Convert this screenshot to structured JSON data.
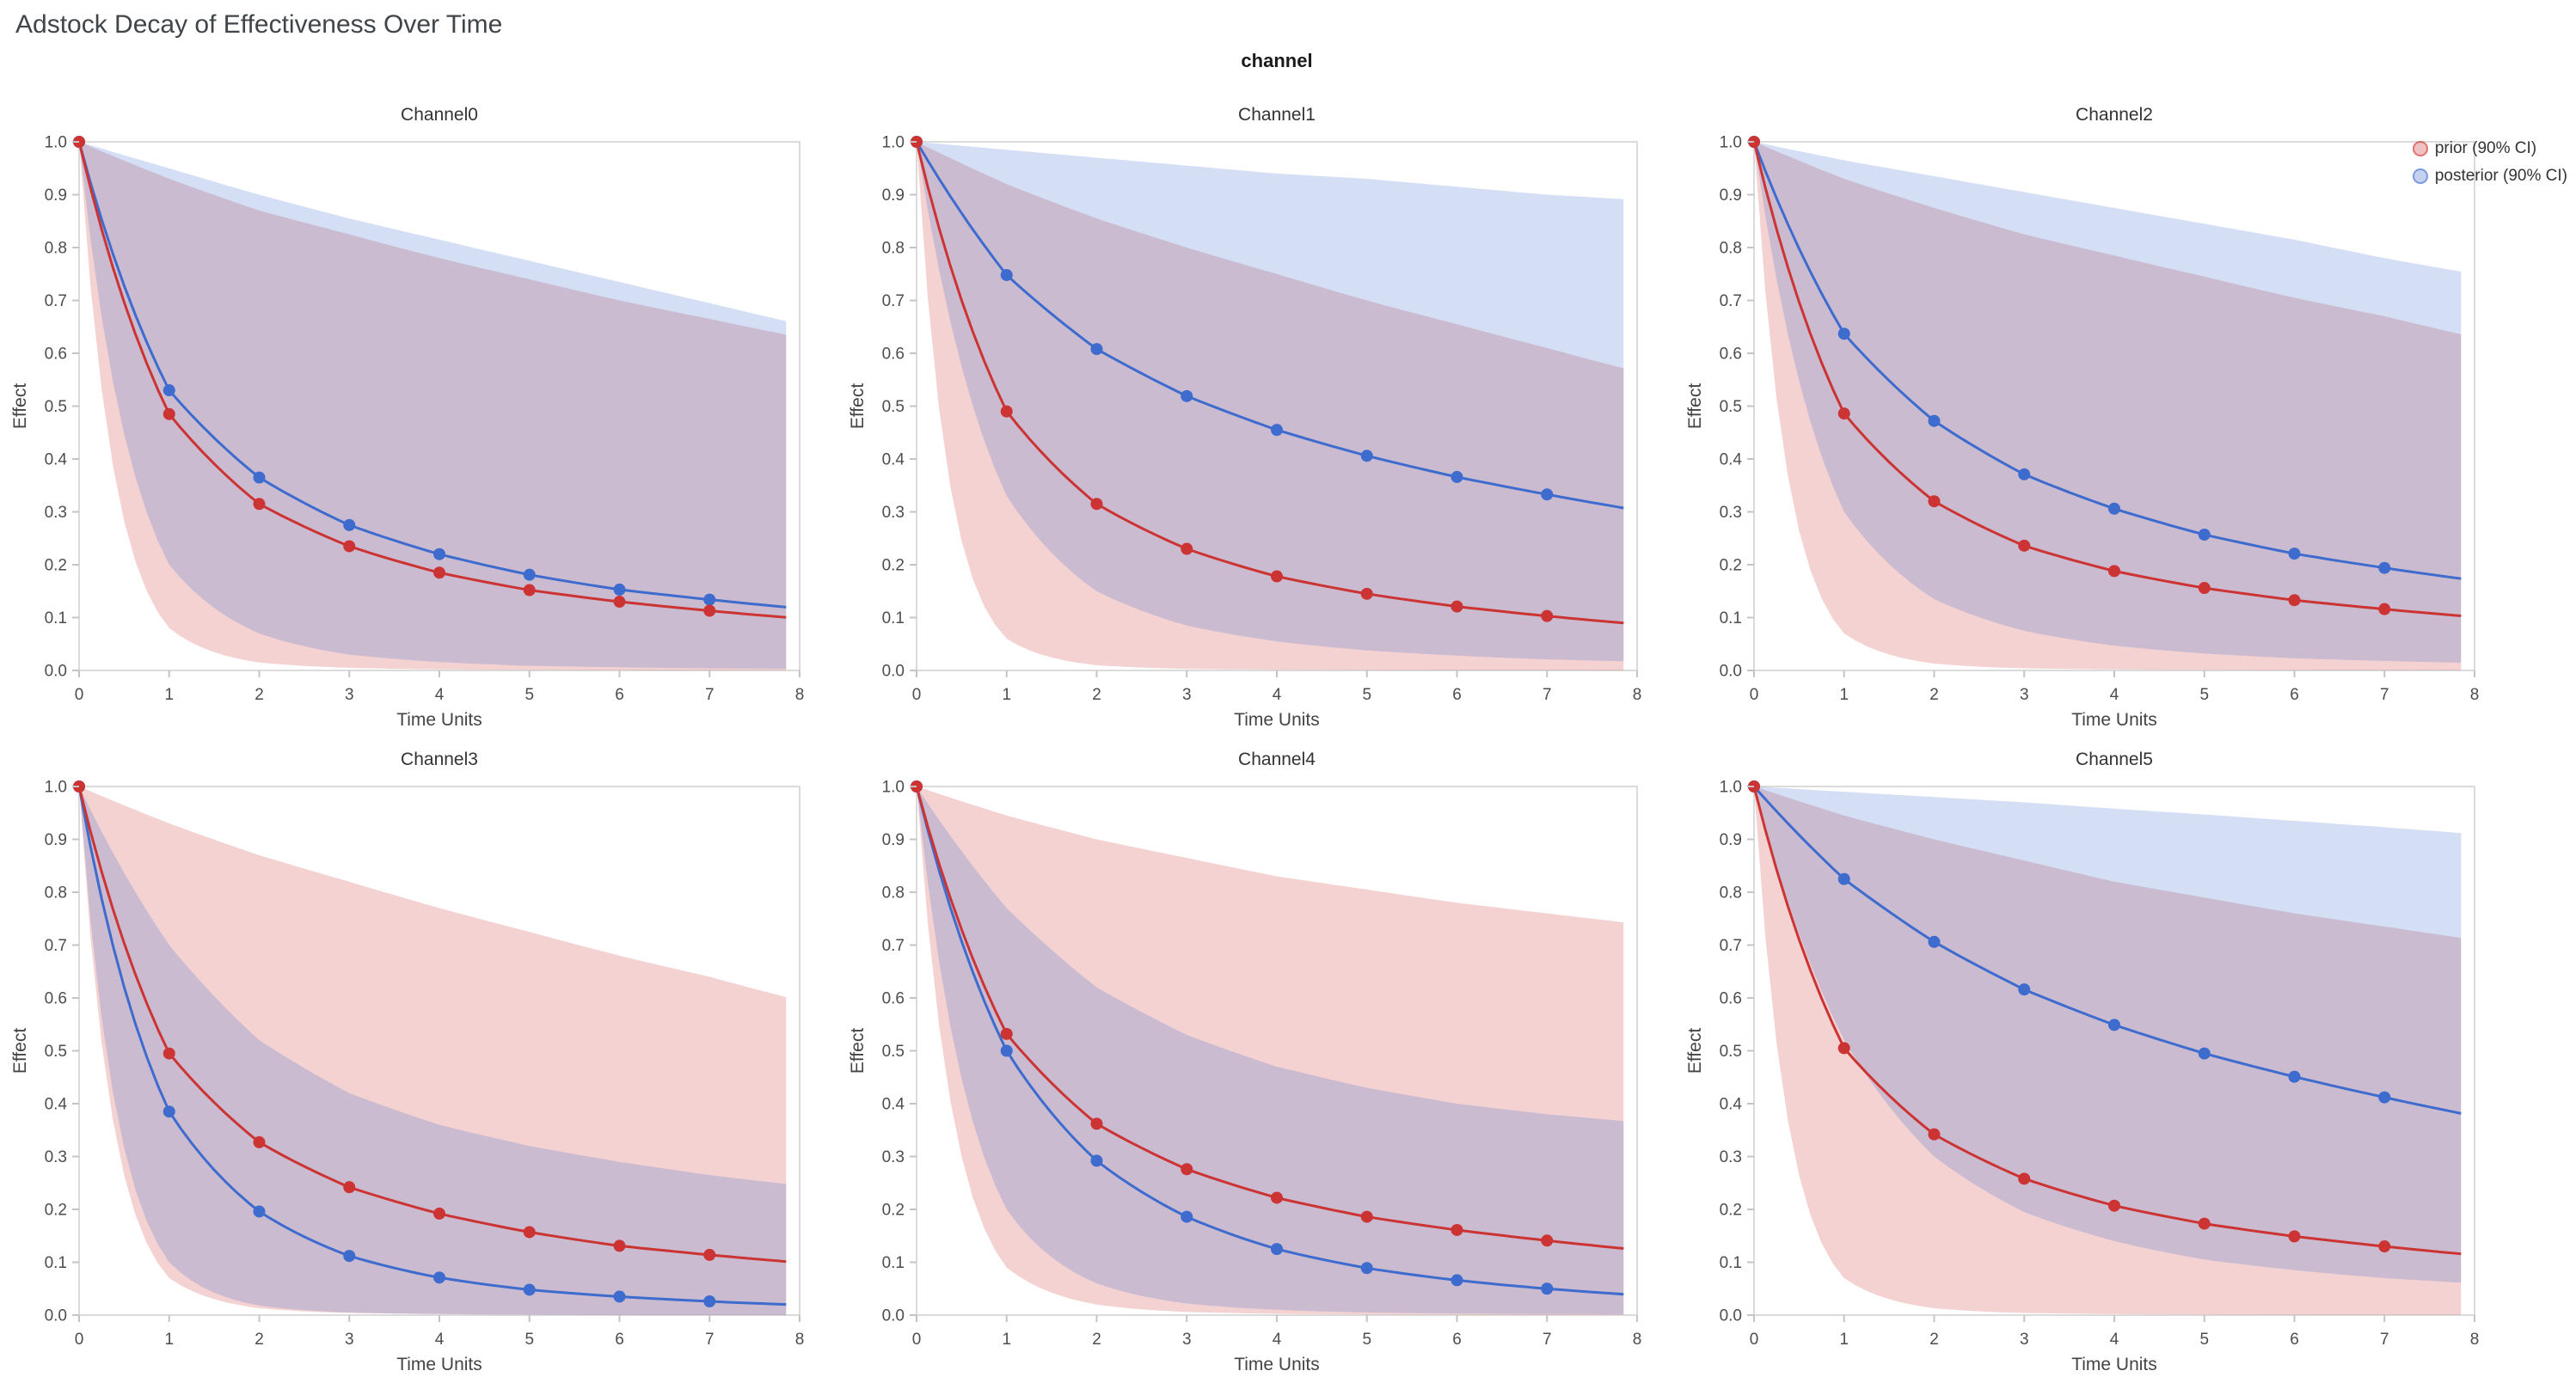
{
  "chart_data": {
    "type": "line",
    "title": "Adstock Decay of Effectiveness Over Time",
    "facet_label": "channel",
    "xlabel": "Time Units",
    "ylabel": "Effect",
    "xlim": [
      0,
      8
    ],
    "ylim": [
      0,
      1
    ],
    "x_ticks": [
      0,
      1,
      2,
      3,
      4,
      5,
      6,
      7,
      8
    ],
    "y_ticks": [
      0.0,
      0.1,
      0.2,
      0.3,
      0.4,
      0.5,
      0.6,
      0.7,
      0.8,
      0.9,
      1.0
    ],
    "x_markers": [
      0,
      1,
      2,
      3,
      4,
      5,
      6,
      7
    ],
    "curve_end_x": 7.85,
    "grid": false,
    "legend_position": "top-right",
    "legend_labels": {
      "prior": "prior (90% CI)",
      "posterior": "posterior (90% CI)"
    },
    "colors": {
      "prior": "#cc3333",
      "posterior": "#3d6bce",
      "band_opacity": 0.22,
      "spine": "#cfcfcf",
      "tick": "#c4c4c4"
    },
    "facets": [
      {
        "name": "Channel0",
        "prior_mean": [
          1.0,
          0.485,
          0.315,
          0.235,
          0.185,
          0.152,
          0.13,
          0.113
        ],
        "posterior_mean": [
          1.0,
          0.53,
          0.365,
          0.275,
          0.22,
          0.181,
          0.153,
          0.134
        ],
        "prior_band_upper": [
          1.0,
          0.93,
          0.87,
          0.825,
          0.78,
          0.74,
          0.7,
          0.665,
          0.63
        ],
        "prior_band_lower": [
          1.0,
          0.08,
          0.015,
          0.005,
          0.002,
          0.001,
          0.0006,
          0.0004,
          0.0003
        ],
        "posterior_band_upper": [
          1.0,
          0.95,
          0.9,
          0.855,
          0.815,
          0.775,
          0.735,
          0.695,
          0.655
        ],
        "posterior_band_lower": [
          1.0,
          0.2,
          0.07,
          0.03,
          0.016,
          0.009,
          0.006,
          0.004,
          0.003
        ]
      },
      {
        "name": "Channel1",
        "prior_mean": [
          1.0,
          0.49,
          0.315,
          0.23,
          0.178,
          0.145,
          0.121,
          0.103
        ],
        "posterior_mean": [
          1.0,
          0.748,
          0.608,
          0.519,
          0.455,
          0.406,
          0.366,
          0.333
        ],
        "prior_band_upper": [
          1.0,
          0.92,
          0.855,
          0.8,
          0.75,
          0.7,
          0.655,
          0.61,
          0.565
        ],
        "prior_band_lower": [
          1.0,
          0.06,
          0.01,
          0.003,
          0.0015,
          0.0008,
          0.0005,
          0.0003,
          0.0002
        ],
        "posterior_band_upper": [
          1.0,
          0.985,
          0.97,
          0.955,
          0.94,
          0.93,
          0.915,
          0.9,
          0.89
        ],
        "posterior_band_lower": [
          1.0,
          0.33,
          0.15,
          0.085,
          0.055,
          0.038,
          0.028,
          0.021,
          0.017
        ]
      },
      {
        "name": "Channel2",
        "prior_mean": [
          1.0,
          0.486,
          0.32,
          0.236,
          0.188,
          0.156,
          0.133,
          0.116
        ],
        "posterior_mean": [
          1.0,
          0.637,
          0.472,
          0.371,
          0.306,
          0.257,
          0.221,
          0.194
        ],
        "prior_band_upper": [
          1.0,
          0.93,
          0.875,
          0.825,
          0.785,
          0.745,
          0.705,
          0.67,
          0.63
        ],
        "prior_band_lower": [
          1.0,
          0.07,
          0.013,
          0.004,
          0.002,
          0.001,
          0.0006,
          0.0004,
          0.0003
        ],
        "posterior_band_upper": [
          1.0,
          0.965,
          0.935,
          0.905,
          0.875,
          0.845,
          0.815,
          0.78,
          0.75
        ],
        "posterior_band_lower": [
          1.0,
          0.3,
          0.135,
          0.075,
          0.047,
          0.032,
          0.023,
          0.018,
          0.014
        ]
      },
      {
        "name": "Channel3",
        "prior_mean": [
          1.0,
          0.495,
          0.327,
          0.242,
          0.192,
          0.157,
          0.131,
          0.114
        ],
        "posterior_mean": [
          1.0,
          0.385,
          0.196,
          0.112,
          0.071,
          0.048,
          0.035,
          0.026
        ],
        "prior_band_upper": [
          1.0,
          0.93,
          0.87,
          0.82,
          0.77,
          0.725,
          0.68,
          0.64,
          0.595
        ],
        "prior_band_lower": [
          1.0,
          0.07,
          0.013,
          0.004,
          0.002,
          0.001,
          0.0006,
          0.0004,
          0.0003
        ],
        "posterior_band_upper": [
          1.0,
          0.7,
          0.52,
          0.42,
          0.36,
          0.32,
          0.29,
          0.265,
          0.245
        ],
        "posterior_band_lower": [
          1.0,
          0.1,
          0.018,
          0.005,
          0.002,
          0.001,
          0.0006,
          0.0004,
          0.0003
        ]
      },
      {
        "name": "Channel4",
        "prior_mean": [
          1.0,
          0.532,
          0.362,
          0.276,
          0.222,
          0.186,
          0.161,
          0.141
        ],
        "posterior_mean": [
          1.0,
          0.5,
          0.292,
          0.186,
          0.125,
          0.089,
          0.066,
          0.05
        ],
        "prior_band_upper": [
          1.0,
          0.945,
          0.9,
          0.865,
          0.83,
          0.805,
          0.78,
          0.76,
          0.74
        ],
        "prior_band_lower": [
          1.0,
          0.09,
          0.02,
          0.006,
          0.0025,
          0.0013,
          0.0008,
          0.0005,
          0.0004
        ],
        "posterior_band_upper": [
          1.0,
          0.77,
          0.62,
          0.53,
          0.47,
          0.43,
          0.4,
          0.38,
          0.365
        ],
        "posterior_band_lower": [
          1.0,
          0.2,
          0.06,
          0.022,
          0.01,
          0.005,
          0.003,
          0.002,
          0.0015
        ]
      },
      {
        "name": "Channel5",
        "prior_mean": [
          1.0,
          0.505,
          0.342,
          0.258,
          0.207,
          0.173,
          0.149,
          0.13
        ],
        "posterior_mean": [
          1.0,
          0.825,
          0.706,
          0.616,
          0.549,
          0.495,
          0.451,
          0.412
        ],
        "prior_band_upper": [
          1.0,
          0.945,
          0.9,
          0.86,
          0.82,
          0.79,
          0.76,
          0.735,
          0.71
        ],
        "prior_band_lower": [
          1.0,
          0.07,
          0.013,
          0.004,
          0.002,
          0.001,
          0.0006,
          0.0004,
          0.0003
        ],
        "posterior_band_upper": [
          1.0,
          0.99,
          0.98,
          0.97,
          0.958,
          0.947,
          0.935,
          0.923,
          0.91
        ],
        "posterior_band_lower": [
          1.0,
          0.52,
          0.3,
          0.195,
          0.14,
          0.105,
          0.085,
          0.07,
          0.06
        ]
      }
    ]
  }
}
